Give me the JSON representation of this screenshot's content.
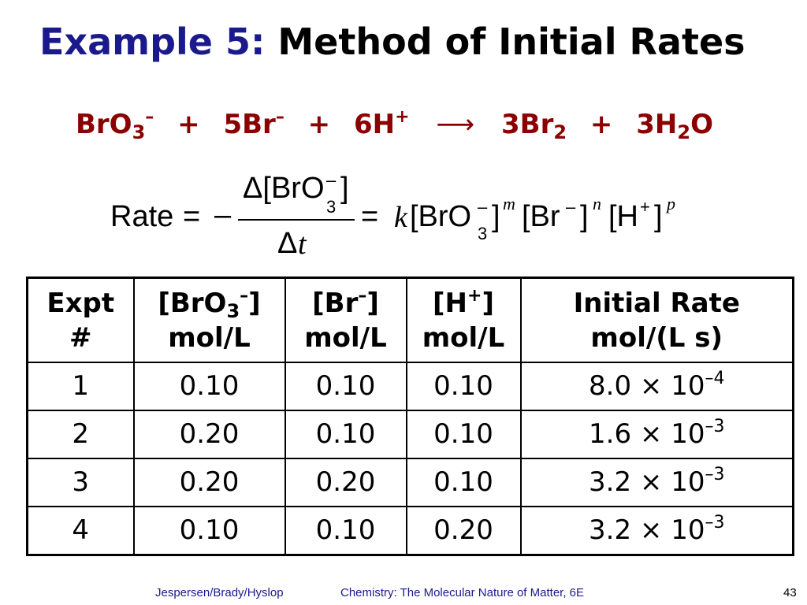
{
  "title": {
    "prefix": "Example 5:",
    "main": "Method of Initial Rates",
    "prefix_color": "#1a1a8c"
  },
  "reaction": {
    "r1": "BrO",
    "r1_sub": "3",
    "r1_charge": "–",
    "plus1": "+",
    "r2": "5Br",
    "r2_charge": "–",
    "plus2": "+",
    "r3": "6H",
    "r3_charge": "+",
    "arrow": "⟶",
    "p1": "3Br",
    "p1_sub": "2",
    "plus3": "+",
    "p2": "3H",
    "p2_sub": "2",
    "p2_end": "O",
    "color": "#8b0000"
  },
  "rate_law": {
    "rate": "Rate",
    "eq1": "=",
    "neg": "–",
    "num": "Δ[BrO",
    "num_sub": "3",
    "num_charge": "–",
    "num_close": "]",
    "den": "Δ",
    "den_var": "t",
    "eq2": "=",
    "k": "k",
    "t1": "[BrO",
    "t1_sub": "3",
    "t1_charge": "–",
    "t1_close": "]",
    "m": "m",
    "t2": "[Br",
    "t2_charge": "–",
    "t2_close": "]",
    "n": "n",
    "t3": "[H",
    "t3_charge": "+",
    "t3_close": "]",
    "p": "p"
  },
  "table": {
    "headers": [
      {
        "line1": "Expt",
        "line2": "#"
      },
      {
        "line1a": "[BrO",
        "line1_sub": "3",
        "line1_charge": "–",
        "line1b": "]",
        "line2": "mol/L"
      },
      {
        "line1a": "[Br",
        "line1_charge": "–",
        "line1b": "]",
        "line2": "mol/L"
      },
      {
        "line1a": "[H",
        "line1_charge": "+",
        "line1b": "]",
        "line2": "mol/L"
      },
      {
        "line1": "Initial Rate",
        "line2": "mol/(L s)"
      }
    ],
    "rows": [
      {
        "expt": "1",
        "bro3": "0.10",
        "br": "0.10",
        "h": "0.10",
        "rate": "8.0 × 10",
        "exp": "–4"
      },
      {
        "expt": "2",
        "bro3": "0.20",
        "br": "0.10",
        "h": "0.10",
        "rate": "1.6 × 10",
        "exp": "–3"
      },
      {
        "expt": "3",
        "bro3": "0.20",
        "br": "0.20",
        "h": "0.10",
        "rate": "3.2 × 10",
        "exp": "–3"
      },
      {
        "expt": "4",
        "bro3": "0.10",
        "br": "0.10",
        "h": "0.20",
        "rate": "3.2 × 10",
        "exp": "–3"
      }
    ]
  },
  "footer": {
    "authors": "Jespersen/Brady/Hyslop",
    "book": "Chemistry: The Molecular Nature of Matter, 6E",
    "page": "43"
  }
}
